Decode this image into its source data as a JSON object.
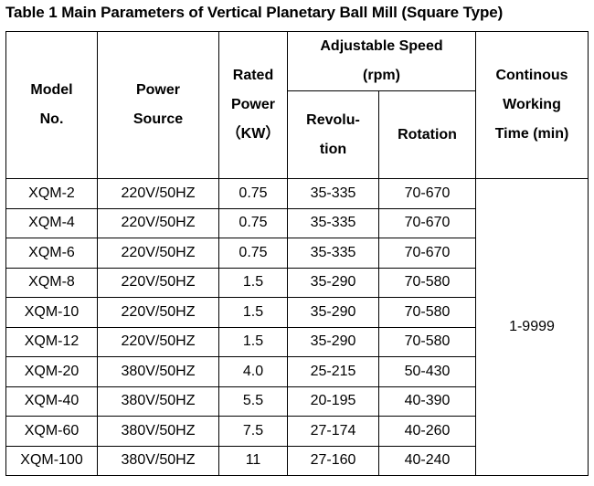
{
  "title": "Table 1 Main Parameters of Vertical Planetary Ball Mill (Square Type)",
  "headers": {
    "model": [
      "Model",
      "No."
    ],
    "power_source": [
      "Power",
      "Source"
    ],
    "rated_power": [
      "Rated",
      "Power",
      "（KW）"
    ],
    "adjustable_speed": [
      "Adjustable Speed",
      "(rpm)"
    ],
    "revolution": [
      "Revolu-",
      "tion"
    ],
    "rotation": "Rotation",
    "working_time": [
      "Continous",
      "Working",
      "Time (min)"
    ]
  },
  "rows": [
    {
      "model": "XQM-2",
      "power_source": "220V/50HZ",
      "rated_power": "0.75",
      "revolution": "35-335",
      "rotation": "70-670"
    },
    {
      "model": "XQM-4",
      "power_source": "220V/50HZ",
      "rated_power": "0.75",
      "revolution": "35-335",
      "rotation": "70-670"
    },
    {
      "model": "XQM-6",
      "power_source": "220V/50HZ",
      "rated_power": "0.75",
      "revolution": "35-335",
      "rotation": "70-670"
    },
    {
      "model": "XQM-8",
      "power_source": "220V/50HZ",
      "rated_power": "1.5",
      "revolution": "35-290",
      "rotation": "70-580"
    },
    {
      "model": "XQM-10",
      "power_source": "220V/50HZ",
      "rated_power": "1.5",
      "revolution": "35-290",
      "rotation": "70-580"
    },
    {
      "model": "XQM-12",
      "power_source": "220V/50HZ",
      "rated_power": "1.5",
      "revolution": "35-290",
      "rotation": "70-580"
    },
    {
      "model": "XQM-20",
      "power_source": "380V/50HZ",
      "rated_power": "4.0",
      "revolution": "25-215",
      "rotation": "50-430"
    },
    {
      "model": "XQM-40",
      "power_source": "380V/50HZ",
      "rated_power": "5.5",
      "revolution": "20-195",
      "rotation": "40-390"
    },
    {
      "model": "XQM-60",
      "power_source": "380V/50HZ",
      "rated_power": "7.5",
      "revolution": "27-174",
      "rotation": "40-260"
    },
    {
      "model": "XQM-100",
      "power_source": "380V/50HZ",
      "rated_power": "11",
      "revolution": "27-160",
      "rotation": "40-240"
    }
  ],
  "working_time_value": "1-9999"
}
